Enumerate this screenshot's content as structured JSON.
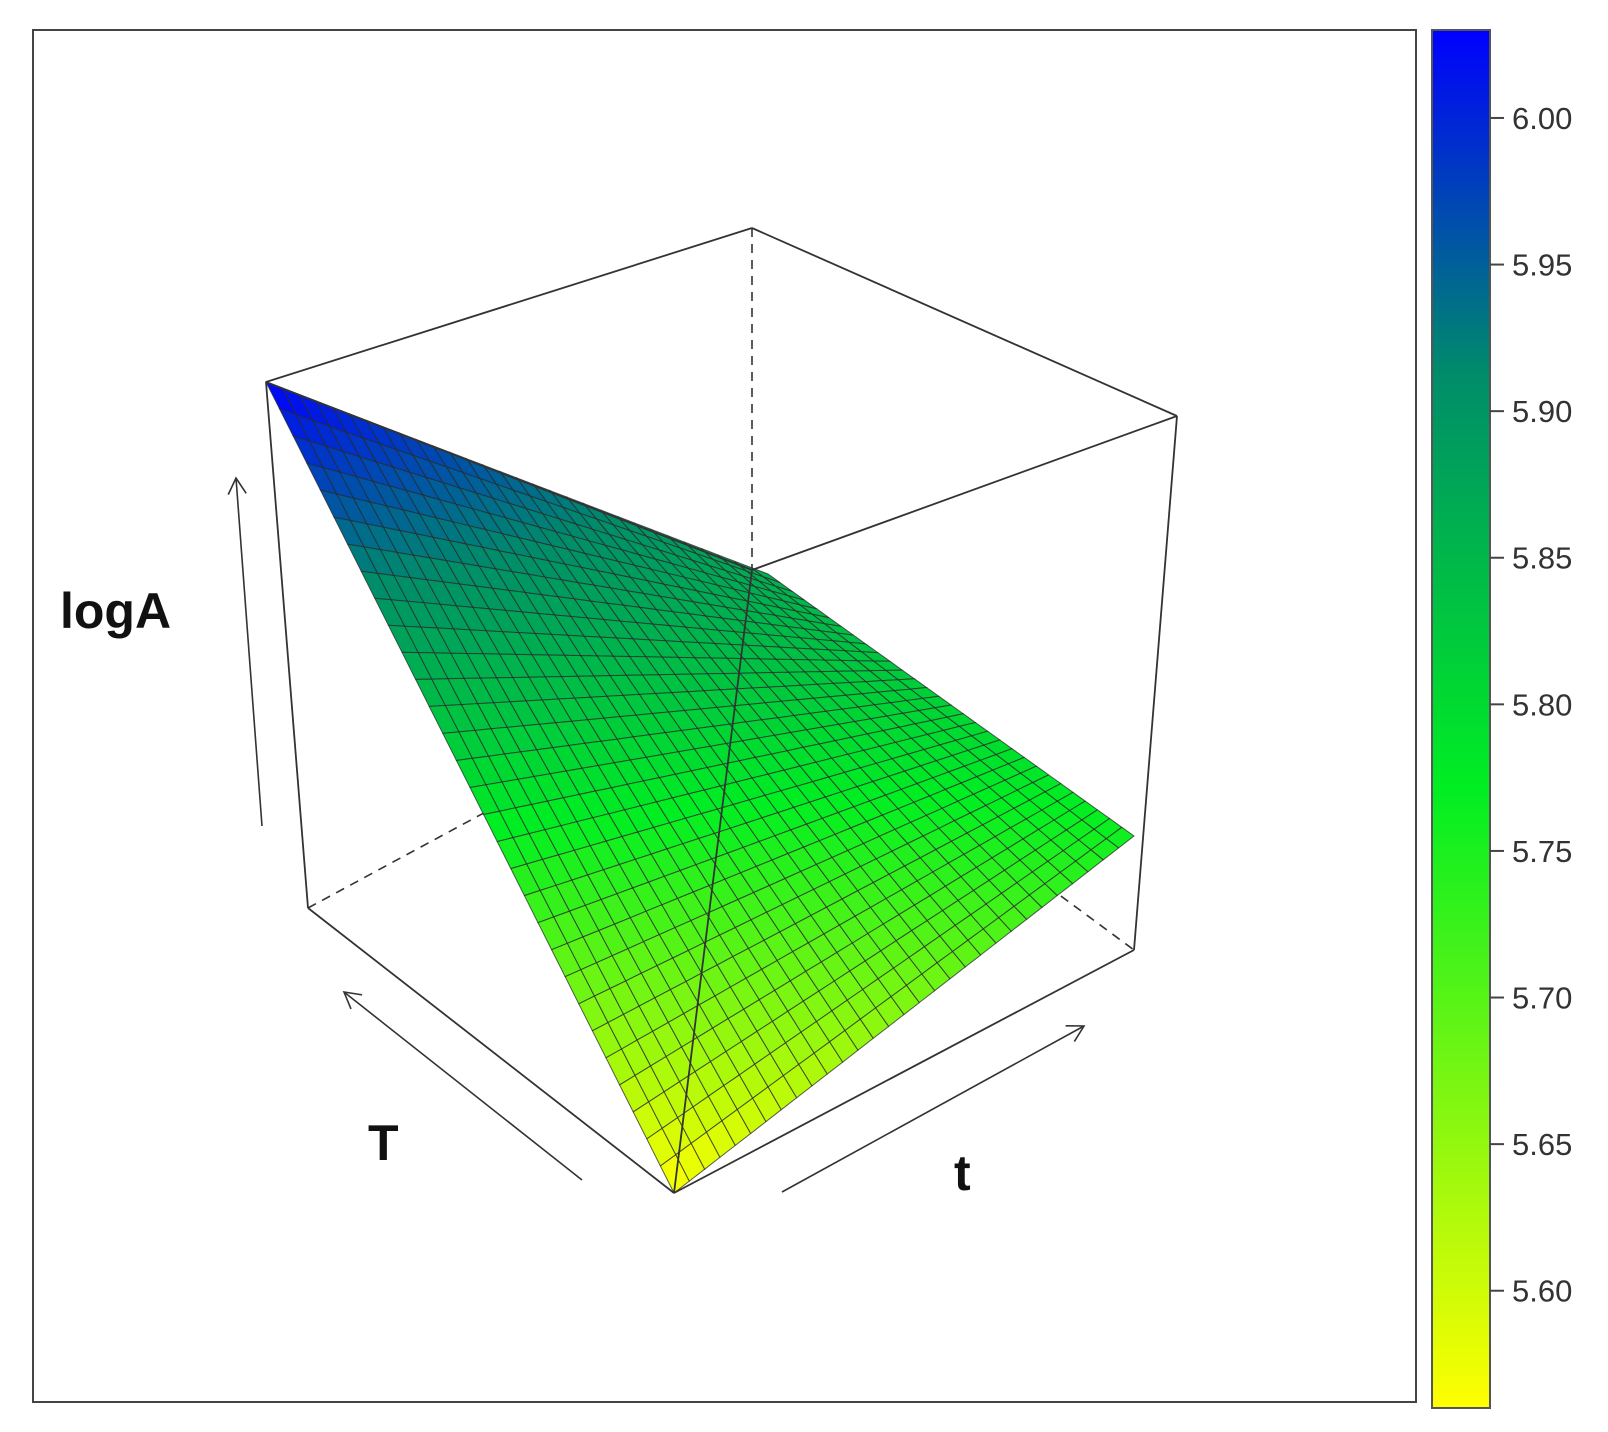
{
  "chart_data": {
    "type": "surface",
    "title": "",
    "axes": {
      "x_label": "T",
      "y_label": "t",
      "z_label": "logA"
    },
    "surface": {
      "corner_values": {
        "T_high_t_low": 6.03,
        "T_low_t_low": 5.56,
        "T_low_t_high": 5.76,
        "T_high_t_high": 5.86
      },
      "grid_resolution": 30
    },
    "colorbar": {
      "min": 5.56,
      "max": 6.03,
      "ticks": [
        "5.60",
        "5.65",
        "5.70",
        "5.75",
        "5.80",
        "5.85",
        "5.90",
        "5.95",
        "6.00"
      ],
      "colors": {
        "low": "#ffff00",
        "mid": "#00ee22",
        "high": "#0000ff"
      }
    },
    "box_visible": true,
    "hidden_edges_dashed": true
  }
}
